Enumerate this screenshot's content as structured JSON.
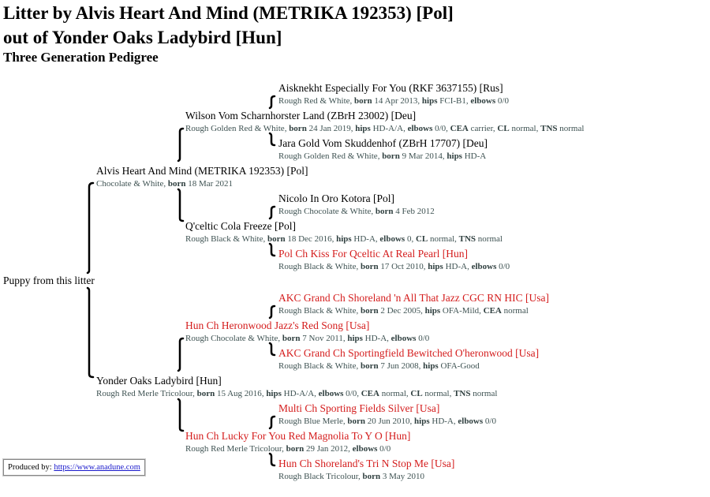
{
  "title_line1": "Litter by Alvis Heart And Mind (METRIKA 192353) [Pol]",
  "title_line2": "out of Yonder Oaks Ladybird [Hun]",
  "subtitle": "Three Generation Pedigree",
  "puppy": "Puppy from this litter",
  "credit": {
    "label": "Produced by:",
    "link": "https://www.anadune.com"
  },
  "colors": {
    "champion": "#d41c1c",
    "details": "#3e5252",
    "normal": "#000000"
  },
  "dogs": [
    {
      "id": "sire",
      "name": "Alvis Heart And Mind (METRIKA 192353) [Pol]",
      "champion": false,
      "color": "Chocolate & White",
      "fields": [
        {
          "k": "born",
          "v": "18 Mar 2021"
        }
      ]
    },
    {
      "id": "sire-sire",
      "name": "Wilson Vom Scharnhorster Land (ZBrH 23002) [Deu]",
      "champion": false,
      "color": "Rough Golden Red & White",
      "fields": [
        {
          "k": "born",
          "v": "24 Jan 2019"
        },
        {
          "k": "hips",
          "v": "HD-A/A"
        },
        {
          "k": "elbows",
          "v": "0/0"
        },
        {
          "k": "CEA",
          "v": "carrier"
        },
        {
          "k": "CL",
          "v": "normal"
        },
        {
          "k": "TNS",
          "v": "normal"
        }
      ]
    },
    {
      "id": "sire-sire-sire",
      "name": "Aisknekht Especially For You (RKF 3637155) [Rus]",
      "champion": false,
      "color": "Rough Red & White",
      "fields": [
        {
          "k": "born",
          "v": "14 Apr 2013"
        },
        {
          "k": "hips",
          "v": "FCI-B1"
        },
        {
          "k": "elbows",
          "v": "0/0"
        }
      ]
    },
    {
      "id": "sire-sire-dam",
      "name": "Jara Gold Vom Skuddenhof (ZBrH 17707) [Deu]",
      "champion": false,
      "color": "Rough Golden Red & White",
      "fields": [
        {
          "k": "born",
          "v": "9 Mar 2014"
        },
        {
          "k": "hips",
          "v": "HD-A"
        }
      ]
    },
    {
      "id": "sire-dam",
      "name": "Q'celtic Cola Freeze [Pol]",
      "champion": false,
      "color": "Rough Black & White",
      "fields": [
        {
          "k": "born",
          "v": "18 Dec 2016"
        },
        {
          "k": "hips",
          "v": "HD-A"
        },
        {
          "k": "elbows",
          "v": "0"
        },
        {
          "k": "CL",
          "v": "normal"
        },
        {
          "k": "TNS",
          "v": "normal"
        }
      ]
    },
    {
      "id": "sire-dam-sire",
      "name": "Nicolo In Oro Kotora [Pol]",
      "champion": false,
      "color": "Rough Chocolate & White",
      "fields": [
        {
          "k": "born",
          "v": "4 Feb 2012"
        }
      ]
    },
    {
      "id": "sire-dam-dam",
      "name": "Pol Ch Kiss For Qceltic At Real Pearl [Hun]",
      "champion": true,
      "color": "Rough Black & White",
      "fields": [
        {
          "k": "born",
          "v": "17 Oct 2010"
        },
        {
          "k": "hips",
          "v": "HD-A"
        },
        {
          "k": "elbows",
          "v": "0/0"
        }
      ]
    },
    {
      "id": "dam",
      "name": "Yonder Oaks Ladybird [Hun]",
      "champion": false,
      "color": "Rough Red Merle Tricolour",
      "fields": [
        {
          "k": "born",
          "v": "15 Aug 2016"
        },
        {
          "k": "hips",
          "v": "HD-A/A"
        },
        {
          "k": "elbows",
          "v": "0/0"
        },
        {
          "k": "CEA",
          "v": "normal"
        },
        {
          "k": "CL",
          "v": "normal"
        },
        {
          "k": "TNS",
          "v": "normal"
        }
      ]
    },
    {
      "id": "dam-sire",
      "name": "Hun Ch Heronwood Jazz's Red Song [Usa]",
      "champion": true,
      "color": "Rough Chocolate & White",
      "fields": [
        {
          "k": "born",
          "v": "7 Nov 2011"
        },
        {
          "k": "hips",
          "v": "HD-A"
        },
        {
          "k": "elbows",
          "v": "0/0"
        }
      ]
    },
    {
      "id": "dam-sire-sire",
      "name": "AKC Grand Ch Shoreland 'n All That Jazz CGC RN HIC [Usa]",
      "champion": true,
      "color": "Rough Black & White",
      "fields": [
        {
          "k": "born",
          "v": "2 Dec 2005"
        },
        {
          "k": "hips",
          "v": "OFA-Mild"
        },
        {
          "k": "CEA",
          "v": "normal"
        }
      ]
    },
    {
      "id": "dam-sire-dam",
      "name": "AKC Grand Ch Sportingfield Bewitched O'heronwood [Usa]",
      "champion": true,
      "color": "Rough Black & White",
      "fields": [
        {
          "k": "born",
          "v": "7 Jun 2008"
        },
        {
          "k": "hips",
          "v": "OFA-Good"
        }
      ]
    },
    {
      "id": "dam-dam",
      "name": "Hun Ch Lucky For You Red Magnolia To Y O [Hun]",
      "champion": true,
      "color": "Rough Red Merle Tricolour",
      "fields": [
        {
          "k": "born",
          "v": "29 Jan 2012"
        },
        {
          "k": "elbows",
          "v": "0/0"
        }
      ]
    },
    {
      "id": "dam-dam-sire",
      "name": "Multi Ch Sporting Fields Silver [Usa]",
      "champion": true,
      "color": "Rough Blue Merle",
      "fields": [
        {
          "k": "born",
          "v": "20 Jun 2010"
        },
        {
          "k": "hips",
          "v": "HD-A"
        },
        {
          "k": "elbows",
          "v": "0/0"
        }
      ]
    },
    {
      "id": "dam-dam-dam",
      "name": "Hun Ch Shoreland's Tri N Stop Me [Usa]",
      "champion": true,
      "color": "Rough Black Tricolour",
      "fields": [
        {
          "k": "born",
          "v": "3 May 2010"
        }
      ]
    }
  ]
}
